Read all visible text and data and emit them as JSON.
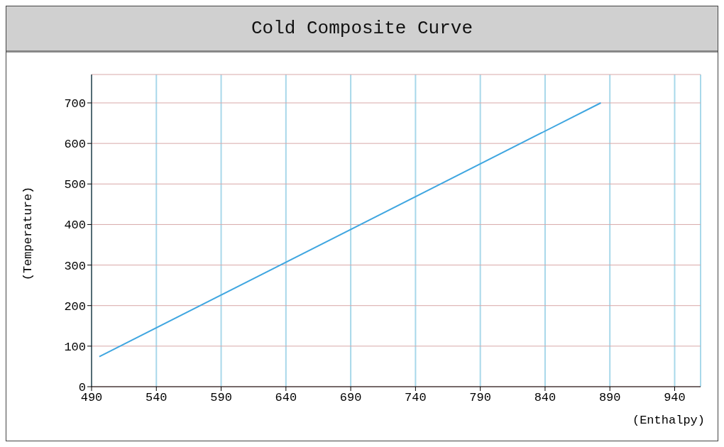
{
  "chart_data": {
    "type": "line",
    "title": "Cold Composite Curve",
    "xlabel": "(Enthalpy)",
    "ylabel": "(Temperature)",
    "x": [
      496,
      883
    ],
    "series": [
      {
        "color": "#3fa6e0",
        "values": [
          74,
          700
        ]
      }
    ],
    "xlim": [
      490,
      960
    ],
    "xticks": [
      490,
      540,
      590,
      640,
      690,
      740,
      790,
      840,
      890,
      940
    ],
    "ylim": [
      0,
      770
    ],
    "yticks": [
      0,
      100,
      200,
      300,
      400,
      500,
      600,
      700
    ],
    "grid": true,
    "legend": false,
    "marker": "none",
    "line_style": "solid"
  }
}
